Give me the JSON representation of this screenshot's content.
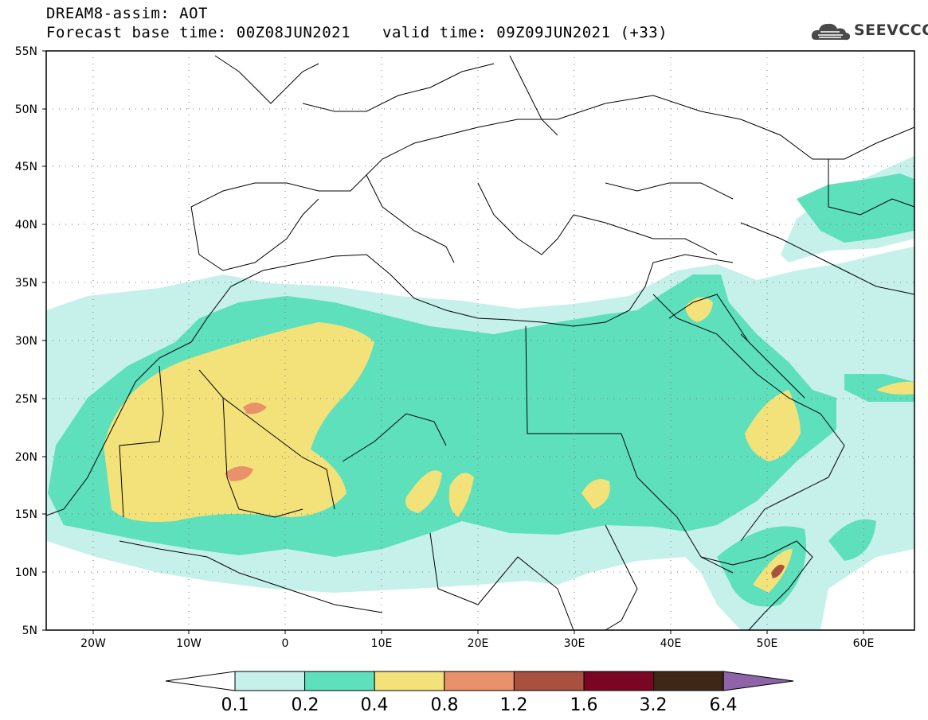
{
  "header": {
    "title_line1": "DREAM8-assim: AOT",
    "title_line2": "Forecast base time: 00Z08JUN2021",
    "valid_time": "valid time: 09Z09JUN2021 (+33)",
    "logo_text": "SEEVCCC"
  },
  "map": {
    "variable": "AOT",
    "lon_range": [
      -25,
      65
    ],
    "lat_range": [
      5,
      55
    ],
    "lat_ticks": [
      "55N",
      "50N",
      "45N",
      "40N",
      "35N",
      "30N",
      "25N",
      "20N",
      "15N",
      "10N",
      "5N"
    ],
    "lon_ticks": [
      "20W",
      "10W",
      "0",
      "10E",
      "20E",
      "30E",
      "40E",
      "50E",
      "60E"
    ]
  },
  "colorbar": {
    "levels": [
      "0.1",
      "0.2",
      "0.4",
      "0.8",
      "1.2",
      "1.6",
      "3.2",
      "6.4"
    ],
    "colors": [
      "#c6f1ea",
      "#5de0bb",
      "#f3e27a",
      "#e9916a",
      "#a8513f",
      "#7a0623",
      "#3e2716",
      "#8e63a8"
    ]
  }
}
